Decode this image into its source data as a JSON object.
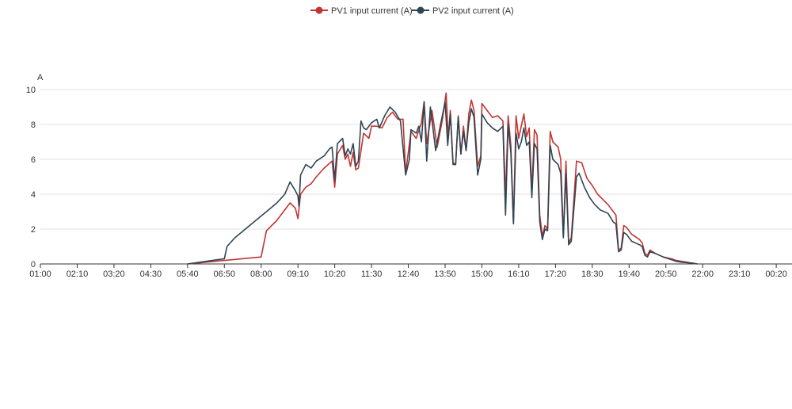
{
  "chart_data": {
    "type": "line",
    "y_unit_label": "A",
    "ylim": [
      0,
      10
    ],
    "y_ticks": [
      "0",
      "2",
      "4",
      "6",
      "8",
      "10"
    ],
    "x_ticks": [
      "01:00",
      "02:10",
      "03:20",
      "04:30",
      "05:40",
      "06:50",
      "08:00",
      "09:10",
      "10:20",
      "11:30",
      "12:40",
      "13:50",
      "15:00",
      "16:10",
      "17:20",
      "18:30",
      "19:40",
      "20:50",
      "22:00",
      "23:10",
      "00:20"
    ],
    "x_range": [
      "01:00",
      "00:50"
    ],
    "grid": true,
    "legend_position": "top-center",
    "series": [
      {
        "name": "PV1 input current (A)",
        "color": "#c23531",
        "points": [
          [
            "05:40",
            0
          ],
          [
            "06:50",
            0.2
          ],
          [
            "08:00",
            0.4
          ],
          [
            "08:10",
            1.9
          ],
          [
            "08:30",
            2.5
          ],
          [
            "08:55",
            3.5
          ],
          [
            "09:05",
            3.2
          ],
          [
            "09:10",
            2.6
          ],
          [
            "09:15",
            4.0
          ],
          [
            "09:25",
            4.4
          ],
          [
            "09:35",
            4.6
          ],
          [
            "09:45",
            5.0
          ],
          [
            "10:00",
            5.5
          ],
          [
            "10:15",
            5.9
          ],
          [
            "10:20",
            4.4
          ],
          [
            "10:25",
            6.3
          ],
          [
            "10:35",
            6.8
          ],
          [
            "10:40",
            6.0
          ],
          [
            "10:45",
            6.3
          ],
          [
            "10:50",
            5.6
          ],
          [
            "10:55",
            6.4
          ],
          [
            "11:00",
            5.4
          ],
          [
            "11:05",
            5.5
          ],
          [
            "11:15",
            7.5
          ],
          [
            "11:25",
            7.2
          ],
          [
            "11:30",
            7.9
          ],
          [
            "11:40",
            7.9
          ],
          [
            "11:50",
            7.8
          ],
          [
            "12:00",
            8.4
          ],
          [
            "12:10",
            8.7
          ],
          [
            "12:20",
            8.3
          ],
          [
            "12:30",
            8.3
          ],
          [
            "12:35",
            5.2
          ],
          [
            "12:45",
            7.6
          ],
          [
            "12:55",
            7.2
          ],
          [
            "13:05",
            8.1
          ],
          [
            "13:10",
            9.3
          ],
          [
            "13:15",
            6.9
          ],
          [
            "13:25",
            8.8
          ],
          [
            "13:35",
            6.7
          ],
          [
            "13:45",
            8.3
          ],
          [
            "13:52",
            9.8
          ],
          [
            "13:56",
            7.2
          ],
          [
            "14:00",
            8.8
          ],
          [
            "14:05",
            5.8
          ],
          [
            "14:10",
            5.7
          ],
          [
            "14:15",
            8.5
          ],
          [
            "14:20",
            6.3
          ],
          [
            "14:25",
            7.9
          ],
          [
            "14:30",
            6.5
          ],
          [
            "14:35",
            8.6
          ],
          [
            "14:40",
            9.4
          ],
          [
            "14:45",
            8.8
          ],
          [
            "14:52",
            5.6
          ],
          [
            "14:58",
            6.2
          ],
          [
            "15:00",
            9.2
          ],
          [
            "15:10",
            8.8
          ],
          [
            "15:20",
            8.4
          ],
          [
            "15:30",
            8.5
          ],
          [
            "15:40",
            8.2
          ],
          [
            "15:45",
            3.8
          ],
          [
            "15:50",
            8.5
          ],
          [
            "15:55",
            6.8
          ],
          [
            "16:00",
            2.4
          ],
          [
            "16:05",
            8.5
          ],
          [
            "16:10",
            7.2
          ],
          [
            "16:15",
            7.9
          ],
          [
            "16:20",
            8.6
          ],
          [
            "16:25",
            7.3
          ],
          [
            "16:30",
            7.8
          ],
          [
            "16:35",
            4.2
          ],
          [
            "16:40",
            7.7
          ],
          [
            "16:45",
            7.4
          ],
          [
            "16:50",
            2.8
          ],
          [
            "16:55",
            1.6
          ],
          [
            "17:00",
            2.2
          ],
          [
            "17:05",
            2.0
          ],
          [
            "17:10",
            7.6
          ],
          [
            "17:15",
            7.0
          ],
          [
            "17:25",
            6.7
          ],
          [
            "17:30",
            6.0
          ],
          [
            "17:35",
            1.6
          ],
          [
            "17:40",
            5.9
          ],
          [
            "17:45",
            1.2
          ],
          [
            "17:50",
            1.5
          ],
          [
            "18:00",
            5.9
          ],
          [
            "18:10",
            5.8
          ],
          [
            "18:20",
            4.9
          ],
          [
            "18:30",
            4.5
          ],
          [
            "18:40",
            4.0
          ],
          [
            "18:50",
            3.7
          ],
          [
            "19:00",
            3.4
          ],
          [
            "19:10",
            3.0
          ],
          [
            "19:15",
            2.8
          ],
          [
            "19:20",
            0.8
          ],
          [
            "19:25",
            0.9
          ],
          [
            "19:30",
            2.2
          ],
          [
            "19:35",
            2.1
          ],
          [
            "19:45",
            1.7
          ],
          [
            "20:00",
            1.4
          ],
          [
            "20:05",
            1.2
          ],
          [
            "20:10",
            0.6
          ],
          [
            "20:15",
            0.5
          ],
          [
            "20:20",
            0.8
          ],
          [
            "20:30",
            0.6
          ],
          [
            "20:45",
            0.4
          ],
          [
            "21:00",
            0.3
          ],
          [
            "21:10",
            0.2
          ],
          [
            "21:20",
            0.15
          ],
          [
            "21:40",
            0.05
          ],
          [
            "21:50",
            0
          ]
        ]
      },
      {
        "name": "PV2 input current (A)",
        "color": "#2f4554",
        "points": [
          [
            "05:40",
            0
          ],
          [
            "06:50",
            0.3
          ],
          [
            "06:55",
            1.0
          ],
          [
            "07:10",
            1.5
          ],
          [
            "07:30",
            2.0
          ],
          [
            "07:50",
            2.5
          ],
          [
            "08:10",
            3.0
          ],
          [
            "08:30",
            3.5
          ],
          [
            "08:45",
            4.0
          ],
          [
            "08:55",
            4.7
          ],
          [
            "09:05",
            4.2
          ],
          [
            "09:10",
            3.9
          ],
          [
            "09:12",
            3.3
          ],
          [
            "09:15",
            5.1
          ],
          [
            "09:20",
            5.4
          ],
          [
            "09:25",
            5.7
          ],
          [
            "09:35",
            5.5
          ],
          [
            "09:45",
            5.9
          ],
          [
            "10:00",
            6.2
          ],
          [
            "10:10",
            6.6
          ],
          [
            "10:15",
            6.7
          ],
          [
            "10:20",
            4.8
          ],
          [
            "10:25",
            6.9
          ],
          [
            "10:35",
            7.2
          ],
          [
            "10:40",
            6.2
          ],
          [
            "10:45",
            6.6
          ],
          [
            "10:50",
            6.3
          ],
          [
            "10:55",
            6.9
          ],
          [
            "11:00",
            5.6
          ],
          [
            "11:05",
            5.9
          ],
          [
            "11:10",
            8.2
          ],
          [
            "11:15",
            7.8
          ],
          [
            "11:20",
            7.7
          ],
          [
            "11:30",
            8.1
          ],
          [
            "11:40",
            8.3
          ],
          [
            "11:45",
            7.8
          ],
          [
            "11:55",
            8.5
          ],
          [
            "12:05",
            9.0
          ],
          [
            "12:15",
            8.7
          ],
          [
            "12:25",
            8.2
          ],
          [
            "12:35",
            5.1
          ],
          [
            "12:42",
            6.0
          ],
          [
            "12:45",
            7.7
          ],
          [
            "12:55",
            7.5
          ],
          [
            "13:00",
            7.9
          ],
          [
            "13:05",
            7.0
          ],
          [
            "13:10",
            9.3
          ],
          [
            "13:15",
            5.9
          ],
          [
            "13:22",
            9.0
          ],
          [
            "13:32",
            6.5
          ],
          [
            "13:40",
            7.8
          ],
          [
            "13:50",
            9.3
          ],
          [
            "13:55",
            6.8
          ],
          [
            "14:00",
            8.6
          ],
          [
            "14:05",
            5.7
          ],
          [
            "14:10",
            5.7
          ],
          [
            "14:15",
            8.4
          ],
          [
            "14:20",
            6.3
          ],
          [
            "14:25",
            7.6
          ],
          [
            "14:30",
            6.5
          ],
          [
            "14:35",
            8.1
          ],
          [
            "14:40",
            8.9
          ],
          [
            "14:45",
            8.4
          ],
          [
            "14:52",
            5.1
          ],
          [
            "14:58",
            6.0
          ],
          [
            "15:00",
            8.6
          ],
          [
            "15:10",
            8.1
          ],
          [
            "15:20",
            7.8
          ],
          [
            "15:30",
            7.6
          ],
          [
            "15:40",
            7.9
          ],
          [
            "15:45",
            2.8
          ],
          [
            "15:50",
            8.0
          ],
          [
            "15:55",
            6.4
          ],
          [
            "16:00",
            2.3
          ],
          [
            "16:05",
            7.5
          ],
          [
            "16:10",
            6.6
          ],
          [
            "16:15",
            7.0
          ],
          [
            "16:20",
            7.8
          ],
          [
            "16:25",
            6.8
          ],
          [
            "16:30",
            7.0
          ],
          [
            "16:35",
            3.8
          ],
          [
            "16:40",
            6.9
          ],
          [
            "16:45",
            6.6
          ],
          [
            "16:50",
            2.4
          ],
          [
            "16:55",
            1.4
          ],
          [
            "17:00",
            2.0
          ],
          [
            "17:05",
            1.9
          ],
          [
            "17:10",
            6.8
          ],
          [
            "17:15",
            6.0
          ],
          [
            "17:25",
            5.7
          ],
          [
            "17:30",
            5.2
          ],
          [
            "17:35",
            1.5
          ],
          [
            "17:40",
            5.2
          ],
          [
            "17:45",
            1.1
          ],
          [
            "17:50",
            1.3
          ],
          [
            "18:00",
            5.0
          ],
          [
            "18:05",
            5.2
          ],
          [
            "18:15",
            4.4
          ],
          [
            "18:25",
            3.8
          ],
          [
            "18:35",
            3.4
          ],
          [
            "18:45",
            3.1
          ],
          [
            "19:00",
            2.9
          ],
          [
            "19:10",
            2.4
          ],
          [
            "19:15",
            2.3
          ],
          [
            "19:20",
            0.7
          ],
          [
            "19:25",
            0.8
          ],
          [
            "19:30",
            1.8
          ],
          [
            "19:35",
            1.7
          ],
          [
            "19:45",
            1.3
          ],
          [
            "20:00",
            1.1
          ],
          [
            "20:05",
            1.0
          ],
          [
            "20:10",
            0.5
          ],
          [
            "20:15",
            0.4
          ],
          [
            "20:20",
            0.7
          ],
          [
            "20:30",
            0.6
          ],
          [
            "20:45",
            0.4
          ],
          [
            "21:00",
            0.25
          ],
          [
            "21:10",
            0.15
          ],
          [
            "21:20",
            0.1
          ],
          [
            "21:40",
            0.05
          ],
          [
            "21:50",
            0
          ]
        ]
      }
    ]
  }
}
